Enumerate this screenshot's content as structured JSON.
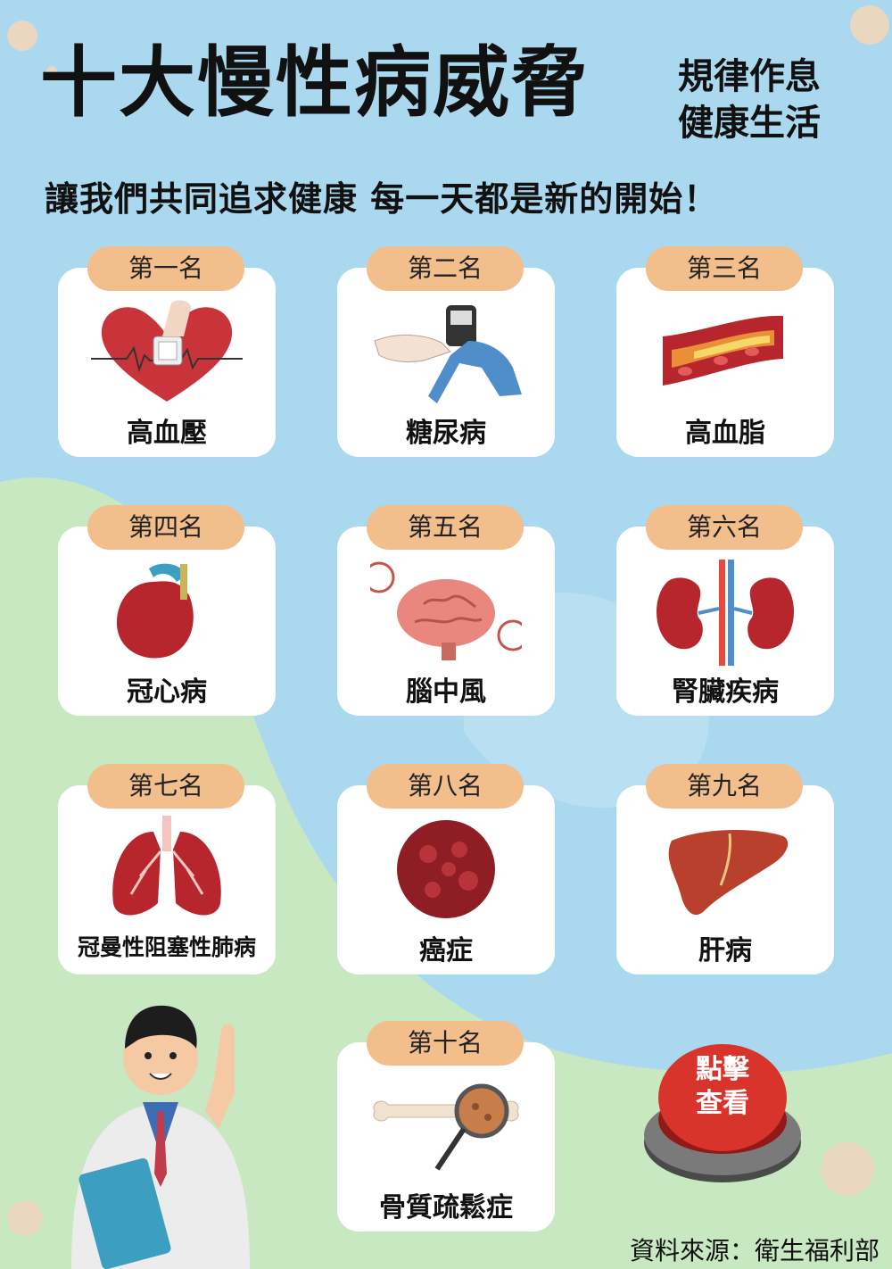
{
  "header": {
    "title": "十大慢性病威脅",
    "side_line1": "規律作息",
    "side_line2": "健康生活",
    "subtitle": "讓我們共同追求健康 每一天都是新的開始！"
  },
  "diseases": [
    {
      "rank": "第一名",
      "name": "高血壓",
      "icon": "blood-pressure-heart-icon"
    },
    {
      "rank": "第二名",
      "name": "糖尿病",
      "icon": "glucose-meter-icon"
    },
    {
      "rank": "第三名",
      "name": "高血脂",
      "icon": "blocked-artery-icon"
    },
    {
      "rank": "第四名",
      "name": "冠心病",
      "icon": "heart-organ-icon"
    },
    {
      "rank": "第五名",
      "name": "腦中風",
      "icon": "brain-icon"
    },
    {
      "rank": "第六名",
      "name": "腎臟疾病",
      "icon": "kidneys-icon"
    },
    {
      "rank": "第七名",
      "name": "冠曼性阻塞性肺病",
      "icon": "lungs-icon"
    },
    {
      "rank": "第八名",
      "name": "癌症",
      "icon": "cancer-cell-icon"
    },
    {
      "rank": "第九名",
      "name": "肝病",
      "icon": "liver-icon"
    },
    {
      "rank": "第十名",
      "name": "骨質疏鬆症",
      "icon": "bone-magnifier-icon"
    }
  ],
  "button": {
    "line1": "點擊",
    "line2": "查看"
  },
  "footer": {
    "source": "資料來源：衛生福利部"
  },
  "colors": {
    "background": "#a9d8ef",
    "green_hill": "#c7e8c1",
    "rank_badge": "#f2be8c",
    "button_red": "#d9342b"
  }
}
